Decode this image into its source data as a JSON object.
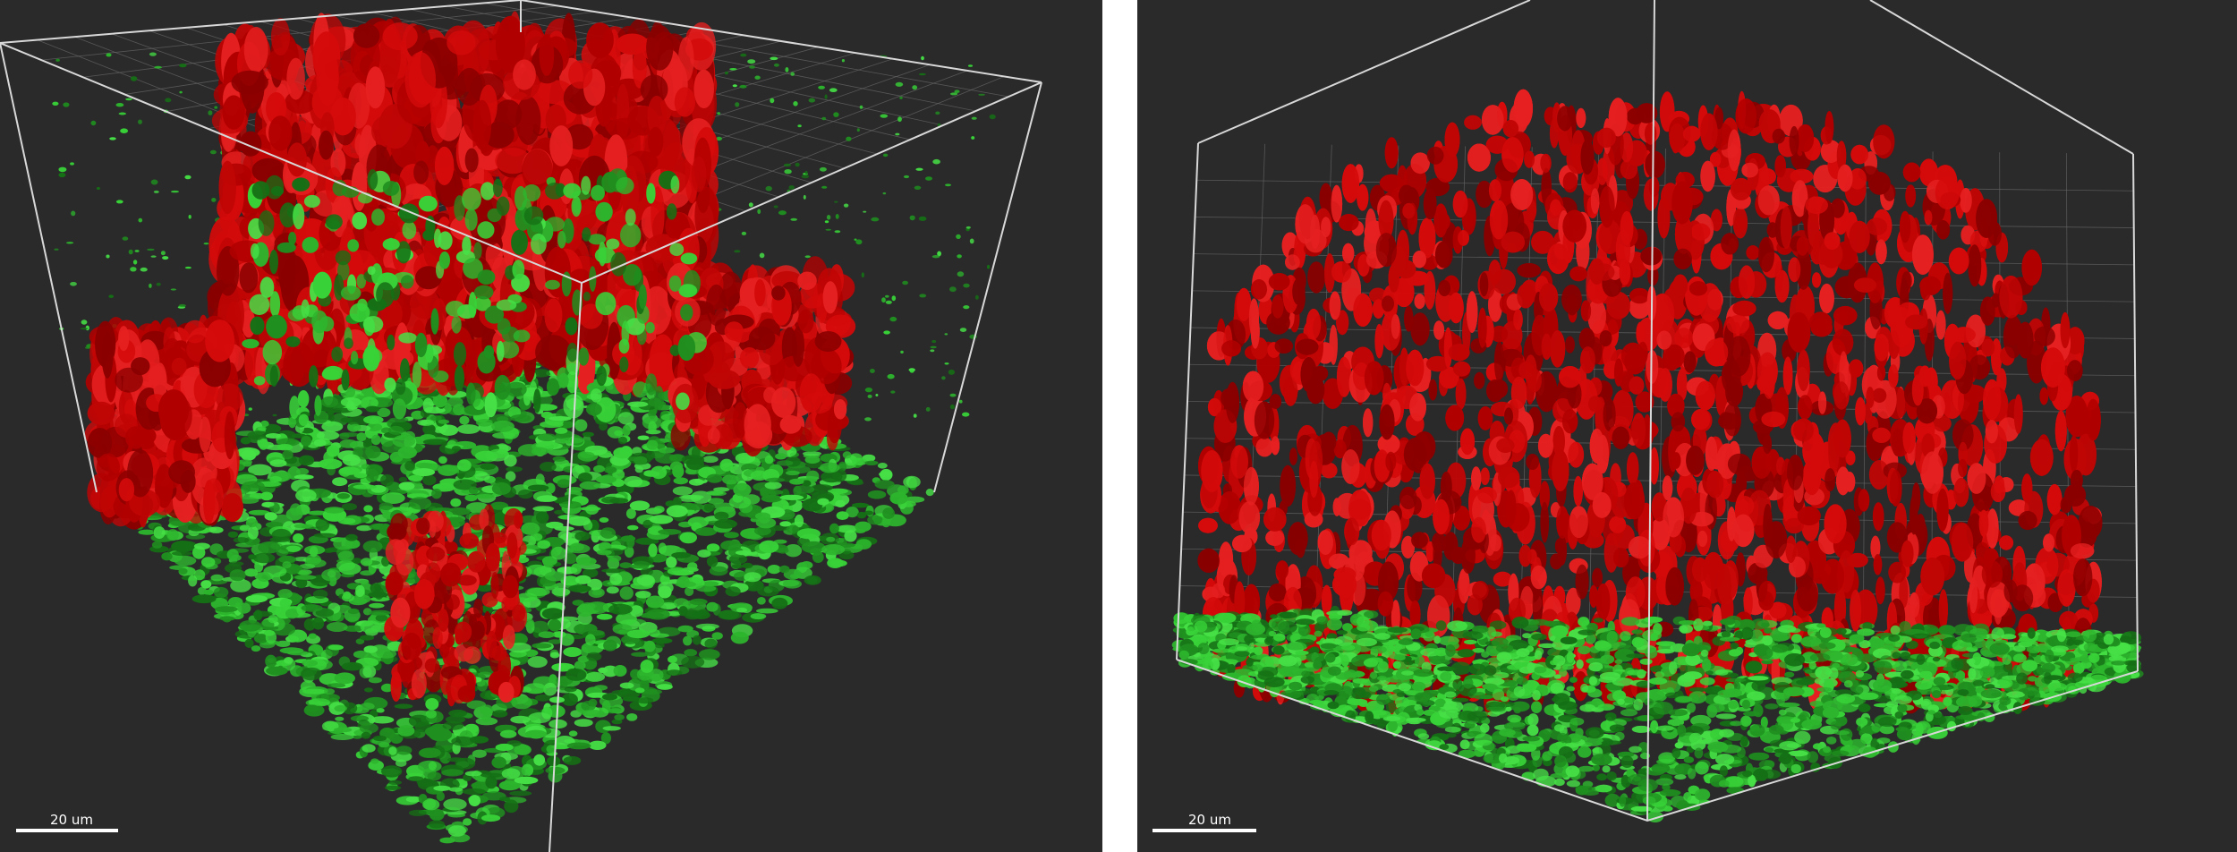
{
  "panels": [
    {
      "scale_bar": "20 um"
    },
    {
      "scale_bar": "20 um"
    }
  ]
}
